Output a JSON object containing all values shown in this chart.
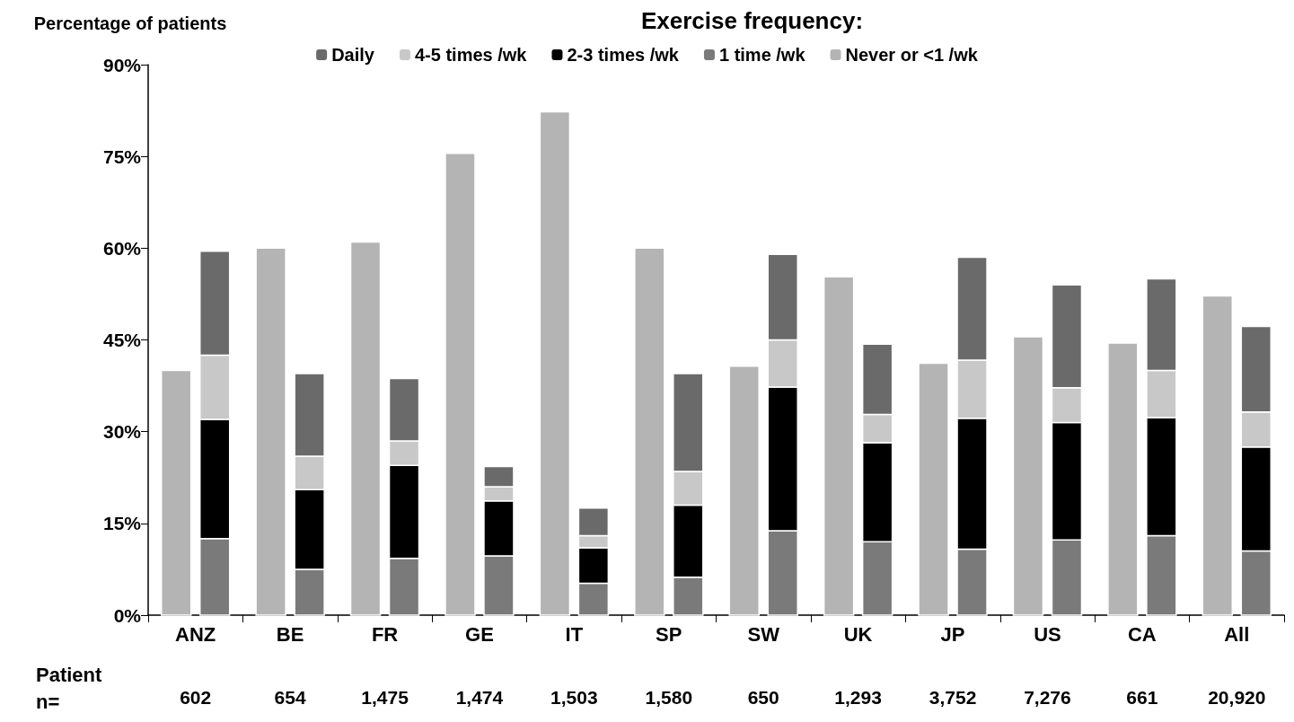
{
  "chart_data": {
    "type": "bar",
    "ylabel": "Percentage of patients",
    "legend_title": "Exercise frequency:",
    "legend": "top",
    "categories": [
      "ANZ",
      "BE",
      "FR",
      "GE",
      "IT",
      "SP",
      "SW",
      "UK",
      "JP",
      "US",
      "CA",
      "All"
    ],
    "series": [
      {
        "name": "Never or <1 /wk",
        "color": "#b4b4b4",
        "values": [
          40,
          60,
          61,
          75.5,
          82.3,
          60,
          40.7,
          55.3,
          41.2,
          45.5,
          44.5,
          52.2
        ]
      },
      {
        "name": "1 time /wk",
        "color": "#7a7a7a",
        "values": [
          12.5,
          7.5,
          9.3,
          9.7,
          5.2,
          6.2,
          13.8,
          12,
          10.8,
          12.3,
          13,
          10.5
        ],
        "base": [
          0,
          0,
          0,
          0,
          0,
          0,
          0,
          0,
          0,
          0,
          0,
          0
        ]
      },
      {
        "name": "2-3 times /wk",
        "color": "#000000",
        "values": [
          19.5,
          13,
          15.2,
          9,
          5.8,
          11.8,
          23.5,
          16.2,
          21.4,
          19.2,
          19.3,
          17
        ],
        "base": [
          12.5,
          7.5,
          9.3,
          9.7,
          5.2,
          6.2,
          13.8,
          12,
          10.8,
          12.3,
          13,
          10.5
        ]
      },
      {
        "name": "4-5 times /wk",
        "color": "#c8c8c8",
        "values": [
          10.5,
          5.5,
          4,
          2.3,
          2,
          5.5,
          7.7,
          4.6,
          9.5,
          5.7,
          7.7,
          5.7
        ],
        "base": [
          32,
          20.5,
          24.5,
          18.7,
          11,
          18,
          37.3,
          28.2,
          32.2,
          31.5,
          32.3,
          27.5
        ]
      },
      {
        "name": "Daily",
        "color": "#6a6a6a",
        "values": [
          17,
          13.5,
          10.2,
          3.3,
          4.5,
          16,
          14,
          11.5,
          16.8,
          16.8,
          15,
          14
        ],
        "base": [
          42.5,
          26,
          28.5,
          21,
          13,
          23.5,
          45,
          32.8,
          41.7,
          37.2,
          40,
          33.2
        ]
      }
    ],
    "ylim": [
      0,
      90
    ],
    "yticks": [
      {
        "value": 0,
        "label": "0%"
      },
      {
        "value": 15,
        "label": "15%"
      },
      {
        "value": 30,
        "label": "30%"
      },
      {
        "value": 45,
        "label": "45%"
      },
      {
        "value": 60,
        "label": "60%"
      },
      {
        "value": 75,
        "label": "75%"
      },
      {
        "value": 90,
        "label": "90%"
      }
    ],
    "annotations": [
      "Patient\nn=",
      "602",
      "654",
      "1,475",
      "1,474",
      "1,503",
      "1,580",
      "650",
      "1,293",
      "3,752",
      "7,276",
      "661",
      "20,920"
    ]
  }
}
